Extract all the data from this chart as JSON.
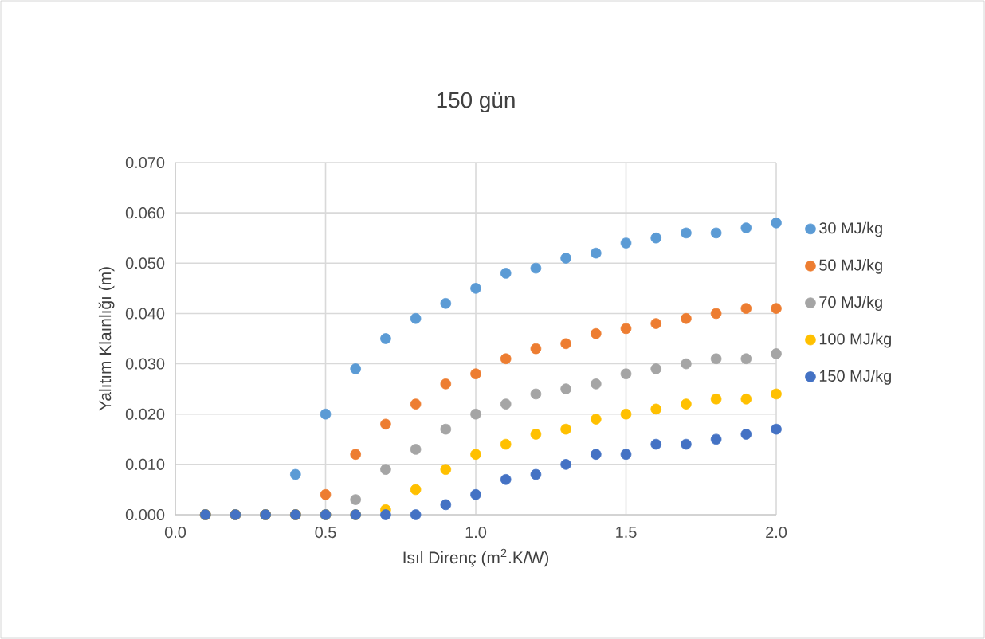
{
  "chart_data": {
    "type": "scatter",
    "title": "150 gün",
    "xlabel": "Isıl Direnç (m$^{2}$.K/W)",
    "ylabel": "Yalıtım Klaınlığı (m)",
    "x": [
      0.1,
      0.2,
      0.3,
      0.4,
      0.5,
      0.6,
      0.7,
      0.8,
      0.9,
      1.0,
      1.1,
      1.2,
      1.3,
      1.4,
      1.5,
      1.6,
      1.7,
      1.8,
      1.9,
      2.0
    ],
    "series": [
      {
        "name": "30 MJ/kg",
        "color": "#5b9bd5",
        "values": [
          0,
          0,
          0,
          0.008,
          0.02,
          0.029,
          0.035,
          0.039,
          0.042,
          0.045,
          0.048,
          0.049,
          0.051,
          0.052,
          0.054,
          0.055,
          0.056,
          0.056,
          0.057,
          0.058
        ]
      },
      {
        "name": "50 MJ/kg",
        "color": "#ed7d31",
        "values": [
          0,
          0,
          0,
          0,
          0.004,
          0.012,
          0.018,
          0.022,
          0.026,
          0.028,
          0.031,
          0.033,
          0.034,
          0.036,
          0.037,
          0.038,
          0.039,
          0.04,
          0.041,
          0.041
        ]
      },
      {
        "name": "70 MJ/kg",
        "color": "#a5a5a5",
        "values": [
          0,
          0,
          0,
          0,
          0,
          0.003,
          0.009,
          0.013,
          0.017,
          0.02,
          0.022,
          0.024,
          0.025,
          0.026,
          0.028,
          0.029,
          0.03,
          0.031,
          0.031,
          0.032
        ]
      },
      {
        "name": "100 MJ/kg",
        "color": "#ffc000",
        "values": [
          0,
          0,
          0,
          0,
          0,
          0,
          0.001,
          0.005,
          0.009,
          0.012,
          0.014,
          0.016,
          0.017,
          0.019,
          0.02,
          0.021,
          0.022,
          0.023,
          0.023,
          0.024
        ]
      },
      {
        "name": "150 MJ/kg",
        "color": "#4472c4",
        "values": [
          0,
          0,
          0,
          0,
          0,
          0,
          0,
          0,
          0.002,
          0.004,
          0.007,
          0.008,
          0.01,
          0.012,
          0.012,
          0.014,
          0.014,
          0.015,
          0.016,
          0.017
        ]
      }
    ],
    "xlim": [
      0,
      2.0
    ],
    "ylim": [
      0,
      0.07
    ],
    "xticks": [
      {
        "value": 0,
        "label": "0.0"
      },
      {
        "value": 0.5,
        "label": "0.5"
      },
      {
        "value": 1.0,
        "label": "1.0"
      },
      {
        "value": 1.5,
        "label": "1.5"
      },
      {
        "value": 2.0,
        "label": "2.0"
      }
    ],
    "yticks": [
      {
        "value": 0,
        "label": "0.000"
      },
      {
        "value": 0.01,
        "label": "0.010"
      },
      {
        "value": 0.02,
        "label": "0.020"
      },
      {
        "value": 0.03,
        "label": "0.030"
      },
      {
        "value": 0.04,
        "label": "0.040"
      },
      {
        "value": 0.05,
        "label": "0.050"
      },
      {
        "value": 0.06,
        "label": "0.060"
      },
      {
        "value": 0.07,
        "label": "0.070"
      }
    ],
    "grid": true,
    "legend": "right",
    "marker": "circle"
  }
}
